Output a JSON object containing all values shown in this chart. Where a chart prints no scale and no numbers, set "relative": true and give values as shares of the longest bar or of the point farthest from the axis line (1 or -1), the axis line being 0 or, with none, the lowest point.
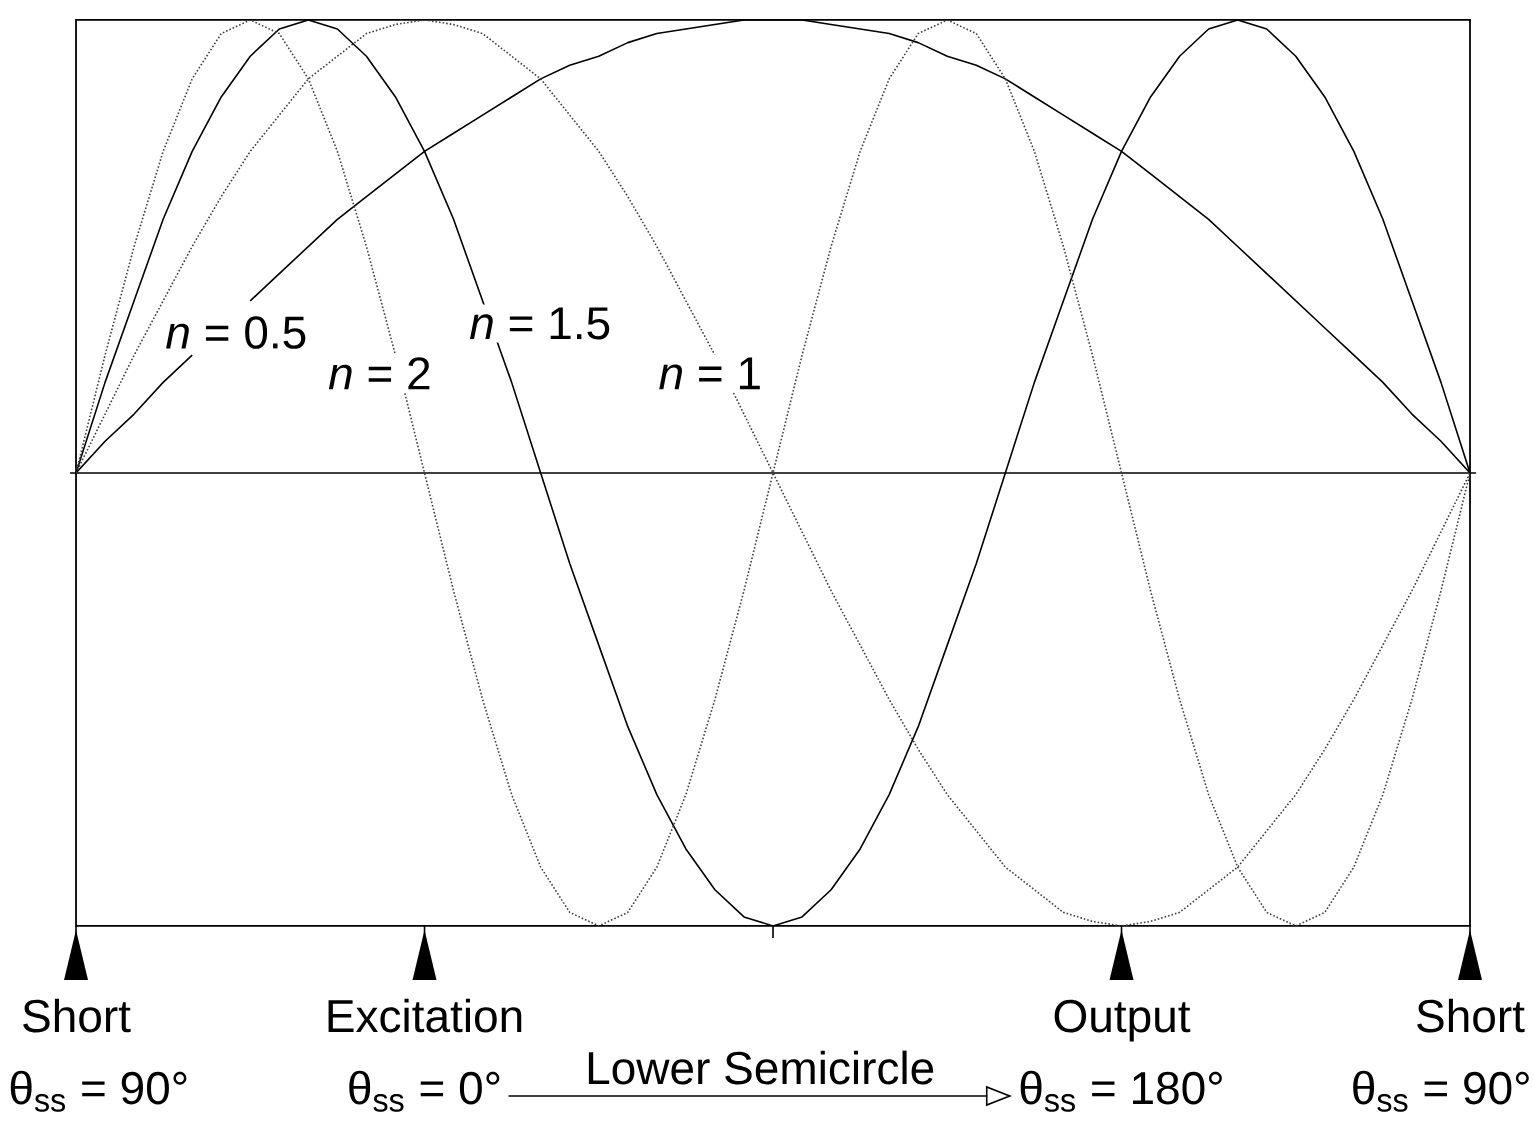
{
  "chart_data": {
    "type": "line",
    "relative": true,
    "categories": [
      "Short",
      null,
      null,
      null,
      null,
      null,
      null,
      null,
      null,
      null,
      null,
      null,
      "Excitation",
      null,
      null,
      null,
      null,
      null,
      null,
      null,
      null,
      null,
      null,
      null,
      null,
      null,
      null,
      null,
      null,
      null,
      null,
      null,
      null,
      null,
      null,
      null,
      "Output",
      null,
      null,
      null,
      null,
      null,
      null,
      null,
      null,
      null,
      null,
      null,
      "Short"
    ],
    "series": [
      {
        "name": "*n* = 0.5",
        "color": "#000000",
        "line_style": "solid",
        "values": [
          0,
          0.07,
          0.13,
          0.2,
          0.26,
          null,
          0.38,
          0.44,
          0.5,
          0.56,
          0.61,
          0.66,
          0.71,
          0.75,
          0.79,
          0.83,
          0.87,
          0.9,
          0.92,
          0.95,
          0.97,
          0.98,
          0.99,
          1,
          1,
          1,
          0.99,
          0.98,
          0.97,
          0.95,
          0.92,
          0.9,
          0.87,
          0.83,
          0.79,
          0.75,
          0.71,
          0.66,
          0.61,
          0.56,
          0.5,
          0.44,
          0.38,
          0.32,
          0.26,
          0.2,
          0.13,
          0.07,
          0
        ]
      },
      {
        "name": "*n* = 1",
        "color": "#404040",
        "line_style": "dotted",
        "values": [
          0,
          0.13,
          0.26,
          0.38,
          0.5,
          0.61,
          0.71,
          0.79,
          0.87,
          0.92,
          0.97,
          0.99,
          1,
          0.99,
          0.97,
          0.92,
          0.87,
          0.79,
          0.71,
          0.61,
          0.5,
          0.38,
          0.26,
          0.13,
          0,
          -0.13,
          -0.26,
          -0.38,
          -0.5,
          -0.61,
          -0.71,
          -0.79,
          -0.87,
          -0.92,
          -0.97,
          -0.99,
          -1,
          -0.99,
          -0.97,
          -0.92,
          -0.87,
          -0.79,
          -0.71,
          -0.61,
          -0.5,
          -0.38,
          -0.26,
          -0.13,
          0
        ]
      },
      {
        "name": "*n* = 1.5",
        "color": "#000000",
        "line_style": "solid",
        "values": [
          0,
          0.2,
          0.38,
          0.56,
          0.71,
          0.83,
          0.92,
          0.98,
          1,
          0.98,
          0.92,
          0.83,
          0.71,
          0.56,
          0.38,
          0.2,
          0,
          -0.2,
          -0.38,
          -0.56,
          -0.71,
          -0.83,
          -0.92,
          -0.98,
          -1,
          -0.98,
          -0.92,
          -0.83,
          -0.71,
          -0.56,
          -0.38,
          -0.2,
          0,
          0.2,
          0.38,
          0.56,
          0.71,
          0.83,
          0.92,
          0.98,
          1,
          0.98,
          0.92,
          0.83,
          0.71,
          0.56,
          0.38,
          0.2,
          0
        ]
      },
      {
        "name": "*n* = 2",
        "color": "#404040",
        "line_style": "dotted",
        "values": [
          0,
          0.26,
          0.5,
          0.71,
          0.87,
          0.97,
          1,
          0.97,
          0.87,
          0.71,
          0.5,
          0.26,
          0,
          -0.26,
          -0.5,
          -0.71,
          -0.87,
          -0.97,
          -1,
          -0.97,
          -0.87,
          -0.71,
          -0.5,
          -0.26,
          0,
          0.26,
          0.5,
          0.71,
          0.87,
          0.97,
          1,
          0.97,
          0.87,
          0.71,
          0.5,
          0.26,
          0,
          -0.26,
          -0.5,
          -0.71,
          -0.87,
          -0.97,
          -1,
          -0.97,
          -0.87,
          -0.71,
          -0.5,
          -0.26,
          0
        ]
      }
    ],
    "annotations": [
      "θ$_{ss}$ = 90°",
      "θ$_{ss}$ = 0°",
      "Lower Semicircle",
      "θ$_{ss}$ = 180°",
      "θ$_{ss}$ = 90°"
    ]
  }
}
